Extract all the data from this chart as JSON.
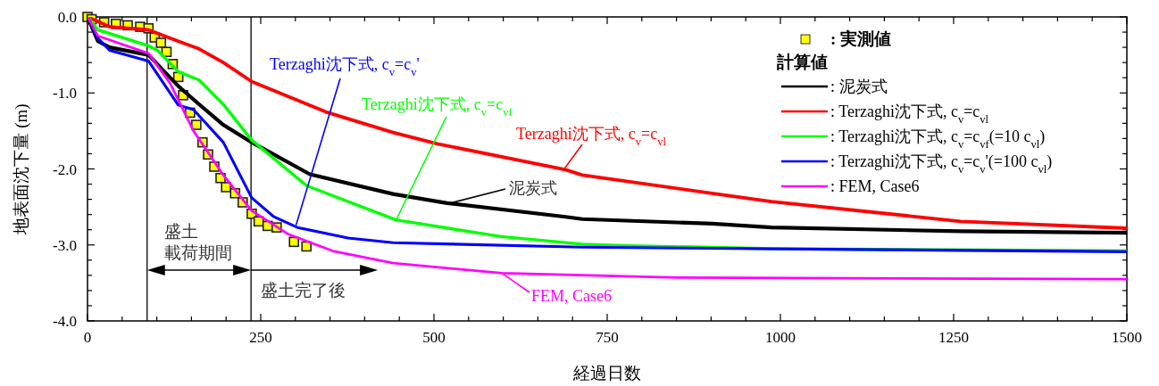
{
  "chart_data": {
    "type": "line",
    "xlabel": "経過日数",
    "ylabel": "地表面沈下量 (m)",
    "xlim": [
      0,
      1500
    ],
    "ylim": [
      -4,
      0
    ],
    "xticks": [
      0,
      {
        "value": 50,
        "label": null
      },
      {
        "value": 100,
        "label": null
      },
      {
        "value": 150,
        "label": null
      },
      {
        "value": 200,
        "label": null
      },
      250,
      {
        "value": 300,
        "label": null
      },
      {
        "value": 350,
        "label": null
      },
      {
        "value": 400,
        "label": null
      },
      {
        "value": 450,
        "label": null
      },
      500,
      {
        "value": 550,
        "label": null
      },
      {
        "value": 600,
        "label": null
      },
      {
        "value": 650,
        "label": null
      },
      {
        "value": 700,
        "label": null
      },
      750,
      {
        "value": 800,
        "label": null
      },
      {
        "value": 850,
        "label": null
      },
      {
        "value": 900,
        "label": null
      },
      {
        "value": 950,
        "label": null
      },
      1000,
      {
        "value": 1050,
        "label": null
      },
      {
        "value": 1100,
        "label": null
      },
      {
        "value": 1150,
        "label": null
      },
      {
        "value": 1200,
        "label": null
      },
      1250,
      {
        "value": 1300,
        "label": null
      },
      {
        "value": 1350,
        "label": null
      },
      {
        "value": 1400,
        "label": null
      },
      {
        "value": 1450,
        "label": null
      },
      1500
    ],
    "yticks": [
      {
        "value": 0,
        "label": "0.0"
      },
      {
        "value": -0.2,
        "label": null
      },
      {
        "value": -0.4,
        "label": null
      },
      {
        "value": -0.6,
        "label": null
      },
      {
        "value": -0.8,
        "label": null
      },
      {
        "value": -1,
        "label": "-1.0"
      },
      {
        "value": -1.2,
        "label": null
      },
      {
        "value": -1.4,
        "label": null
      },
      {
        "value": -1.6,
        "label": null
      },
      {
        "value": -1.8,
        "label": null
      },
      {
        "value": -2,
        "label": "-2.0"
      },
      {
        "value": -2.2,
        "label": null
      },
      {
        "value": -2.4,
        "label": null
      },
      {
        "value": -2.6,
        "label": null
      },
      {
        "value": -2.8,
        "label": null
      },
      {
        "value": -3,
        "label": "-3.0"
      },
      {
        "value": -3.2,
        "label": null
      },
      {
        "value": -3.4,
        "label": null
      },
      {
        "value": -3.6,
        "label": null
      },
      {
        "value": -3.8,
        "label": null
      },
      {
        "value": -4,
        "label": "-4.0"
      }
    ],
    "grid": false,
    "legend": "top right",
    "legend_title": "計算値",
    "series": [
      {
        "name": ": 実測値",
        "type": "scatter",
        "marker": "square",
        "color": "#ffff00",
        "x": [
          0,
          6,
          24,
          41,
          58,
          76,
          88,
          97,
          106,
          114,
          123,
          131,
          138,
          148,
          157,
          166,
          174,
          183,
          192,
          200,
          213,
          224,
          237,
          247,
          260,
          273,
          298,
          316
        ],
        "values": [
          0,
          -0.03,
          -0.07,
          -0.09,
          -0.11,
          -0.13,
          -0.15,
          -0.27,
          -0.34,
          -0.46,
          -0.62,
          -0.79,
          -1.03,
          -1.26,
          -1.42,
          -1.65,
          -1.81,
          -1.97,
          -2.12,
          -2.24,
          -2.32,
          -2.44,
          -2.59,
          -2.69,
          -2.75,
          -2.77,
          -2.96,
          -3.02
        ]
      },
      {
        "name": ": 泥炭式",
        "color": "#000000",
        "x": [
          0,
          15,
          32,
          88,
          131,
          161,
          196,
          237,
          321,
          441,
          519,
          690,
          714,
          901,
          987,
          1260,
          1500
        ],
        "values": [
          0,
          -0.32,
          -0.4,
          -0.5,
          -0.91,
          -1.15,
          -1.42,
          -1.65,
          -2.07,
          -2.33,
          -2.45,
          -2.63,
          -2.66,
          -2.72,
          -2.77,
          -2.82,
          -2.84
        ]
      },
      {
        "name": ": Terzaghi沈下式, c$_{v}$=c$_{vl}$",
        "color": "#ff0000",
        "x": [
          0,
          32,
          88,
          131,
          161,
          196,
          237,
          344,
          441,
          505,
          690,
          714,
          901,
          987,
          1260,
          1500
        ],
        "values": [
          0,
          -0.13,
          -0.17,
          -0.32,
          -0.42,
          -0.6,
          -0.85,
          -1.25,
          -1.52,
          -1.67,
          -2.01,
          -2.08,
          -2.32,
          -2.43,
          -2.69,
          -2.78
        ]
      },
      {
        "name": ": Terzaghi沈下式, c$_{v}$=c$_{vf}$(=10 c$_{vl}$)",
        "color": "#00ff00",
        "x": [
          0,
          15,
          88,
          101,
          131,
          161,
          196,
          237,
          316,
          445,
          597,
          714,
          781,
          987,
          1500
        ],
        "values": [
          0,
          -0.17,
          -0.38,
          -0.44,
          -0.72,
          -0.83,
          -1.15,
          -1.62,
          -2.22,
          -2.67,
          -2.89,
          -2.99,
          -3.01,
          -3.05,
          -3.08
        ]
      },
      {
        "name": ": Terzaghi沈下式, c$_{v}$=c$_{v}$'(=100 c$_{vl}$)",
        "color": "#0000ff",
        "x": [
          0,
          15,
          32,
          88,
          131,
          153,
          196,
          237,
          269,
          303,
          376,
          441,
          714,
          1500
        ],
        "values": [
          0,
          -0.28,
          -0.44,
          -0.58,
          -1.16,
          -1.22,
          -1.65,
          -2.38,
          -2.63,
          -2.77,
          -2.91,
          -2.97,
          -3.03,
          -3.09
        ]
      },
      {
        "name": ": FEM, Case6",
        "color": "#ff00ff",
        "x": [
          0,
          15,
          88,
          119,
          153,
          196,
          237,
          290,
          354,
          441,
          598,
          850,
          1500
        ],
        "values": [
          0,
          -0.25,
          -0.48,
          -0.87,
          -1.5,
          -2.08,
          -2.55,
          -2.86,
          -3.08,
          -3.24,
          -3.37,
          -3.43,
          -3.45
        ]
      }
    ],
    "ref_lines": [
      {
        "axis": "x",
        "value": 86,
        "color": "#000000"
      },
      {
        "axis": "x",
        "value": 236,
        "color": "#000000"
      }
    ],
    "annotations": [
      "盛土",
      "載荷期間",
      "盛土完了後",
      {
        "text": "Terzaghi沈下式, c$_{v}$=c$_{v}$'",
        "x": 301,
        "y": -2.74
      },
      {
        "text": "Terzaghi沈下式, c$_{v}$=c$_{vf}$",
        "x": 446,
        "y": -2.66
      },
      {
        "text": "Terzaghi沈下式, c$_{v}$=c$_{vl}$",
        "x": 688,
        "y": -2.0
      },
      {
        "text": "泥炭式",
        "x": 519,
        "y": -2.46
      },
      {
        "text": "FEM, Case6",
        "x": 598,
        "y": -3.37
      }
    ]
  }
}
